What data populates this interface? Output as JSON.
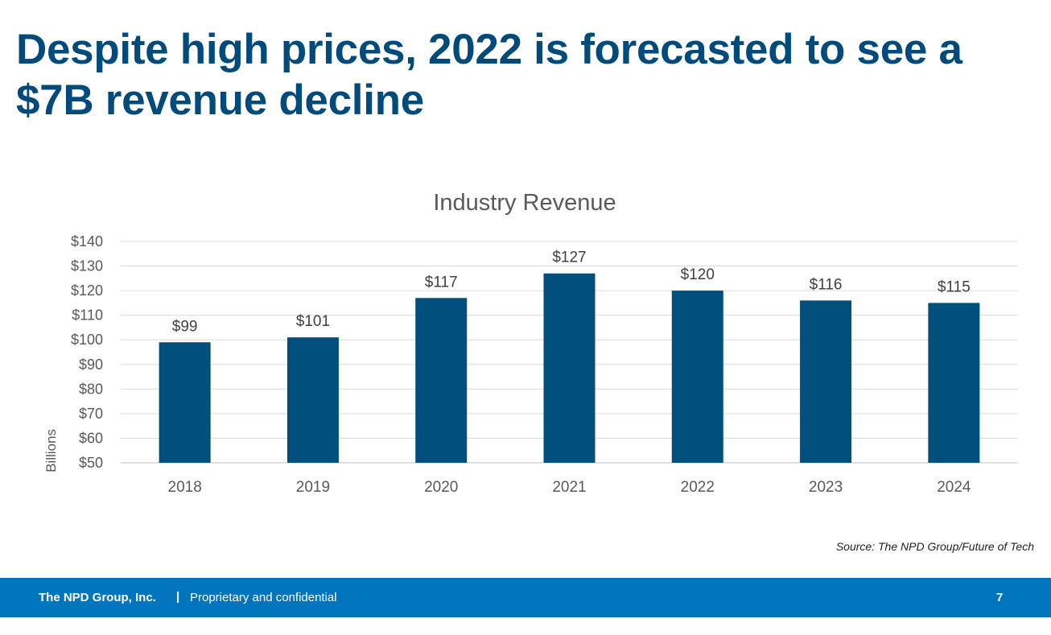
{
  "slide": {
    "title": "Despite high prices, 2022 is forecasted to see a $7B revenue decline",
    "source": "Source: The NPD Group/Future of Tech"
  },
  "footer": {
    "company": "The NPD Group, Inc.",
    "separator": "|",
    "confidentiality": "Proprietary and confidential",
    "page_number": "7"
  },
  "colors": {
    "title": "#004b7c",
    "bar": "#004f7c",
    "footer_bar": "#0075be",
    "gridline": "#d9d9d9",
    "axis_text": "#595959"
  },
  "chart_data": {
    "type": "bar",
    "title": "Industry Revenue",
    "ylabel": "Billions",
    "xlabel": "",
    "categories": [
      "2018",
      "2019",
      "2020",
      "2021",
      "2022",
      "2023",
      "2024"
    ],
    "values": [
      99,
      101,
      117,
      127,
      120,
      116,
      115
    ],
    "data_labels": [
      "$99",
      "$101",
      "$117",
      "$127",
      "$120",
      "$116",
      "$115"
    ],
    "ylim": [
      50,
      140
    ],
    "yticks": [
      50,
      60,
      70,
      80,
      90,
      100,
      110,
      120,
      130,
      140
    ],
    "ytick_labels": [
      "$50",
      "$60",
      "$70",
      "$80",
      "$90",
      "$100",
      "$110",
      "$120",
      "$130",
      "$140"
    ],
    "grid": true,
    "legend": "none"
  }
}
